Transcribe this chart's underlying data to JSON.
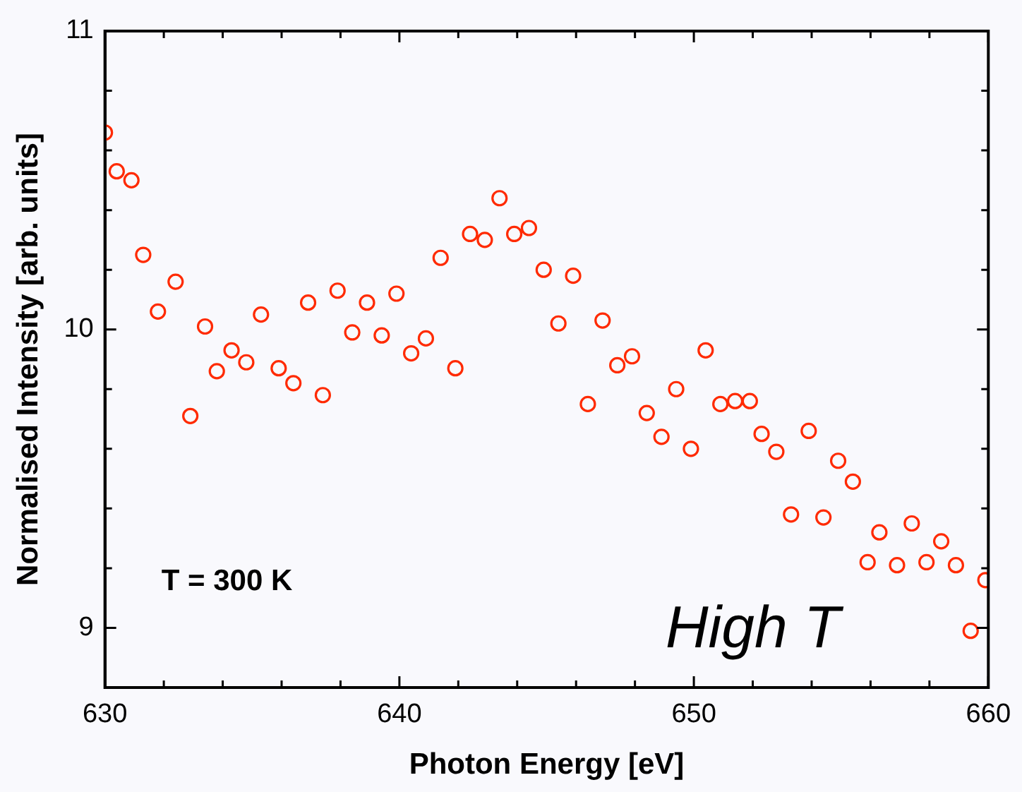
{
  "chart_data": {
    "type": "scatter",
    "xlabel": "Photon Energy [eV]",
    "ylabel": "Normalised Intensity [arb. units]",
    "x": [
      630.0,
      630.4,
      630.9,
      631.3,
      631.8,
      632.4,
      632.9,
      633.4,
      633.8,
      634.3,
      634.8,
      635.3,
      635.9,
      636.4,
      636.9,
      637.4,
      637.9,
      638.4,
      638.9,
      639.4,
      639.9,
      640.4,
      640.9,
      641.4,
      641.9,
      642.4,
      642.9,
      643.4,
      643.9,
      644.4,
      644.9,
      645.4,
      645.9,
      646.4,
      646.9,
      647.4,
      647.9,
      648.4,
      648.9,
      649.4,
      649.9,
      650.4,
      650.9,
      651.4,
      651.9,
      652.3,
      652.8,
      653.3,
      653.9,
      654.4,
      654.9,
      655.4,
      655.9,
      656.3,
      656.9,
      657.4,
      657.9,
      658.4,
      658.9,
      659.4,
      659.9
    ],
    "series": [
      {
        "color": "#ff2a00",
        "values": [
          10.66,
          10.53,
          10.5,
          10.25,
          10.06,
          10.16,
          9.71,
          10.01,
          9.86,
          9.93,
          9.89,
          10.05,
          9.87,
          9.82,
          10.09,
          9.78,
          10.13,
          9.99,
          10.09,
          9.98,
          10.12,
          9.92,
          9.97,
          10.24,
          9.87,
          10.32,
          10.3,
          10.44,
          10.32,
          10.34,
          10.2,
          10.02,
          10.18,
          9.75,
          10.03,
          9.88,
          9.91,
          9.72,
          9.64,
          9.8,
          9.6,
          9.93,
          9.75,
          9.76,
          9.76,
          9.65,
          9.59,
          9.38,
          9.66,
          9.37,
          9.56,
          9.49,
          9.22,
          9.32,
          9.21,
          9.35,
          9.22,
          9.29,
          9.21,
          8.99,
          9.16
        ]
      }
    ],
    "xlim": [
      630,
      660
    ],
    "ylim": [
      8.8,
      11
    ],
    "xticks": [
      630,
      {
        "value": 632,
        "label": null
      },
      {
        "value": 634,
        "label": null
      },
      {
        "value": 636,
        "label": null
      },
      {
        "value": 638,
        "label": null
      },
      640,
      {
        "value": 642,
        "label": null
      },
      {
        "value": 644,
        "label": null
      },
      {
        "value": 646,
        "label": null
      },
      {
        "value": 648,
        "label": null
      },
      650,
      {
        "value": 652,
        "label": null
      },
      {
        "value": 654,
        "label": null
      },
      {
        "value": 656,
        "label": null
      },
      {
        "value": 658,
        "label": null
      },
      660
    ],
    "yticks": [
      9,
      {
        "value": 9.2,
        "label": null
      },
      {
        "value": 9.4,
        "label": null
      },
      {
        "value": 9.6,
        "label": null
      },
      {
        "value": 9.8,
        "label": null
      },
      10,
      {
        "value": 10.2,
        "label": null
      },
      {
        "value": 10.4,
        "label": null
      },
      {
        "value": 10.6,
        "label": null
      },
      {
        "value": 10.8,
        "label": null
      },
      11
    ],
    "marker": "circle",
    "legend": false,
    "annotations": [
      "T = 300 K",
      "High T"
    ]
  }
}
